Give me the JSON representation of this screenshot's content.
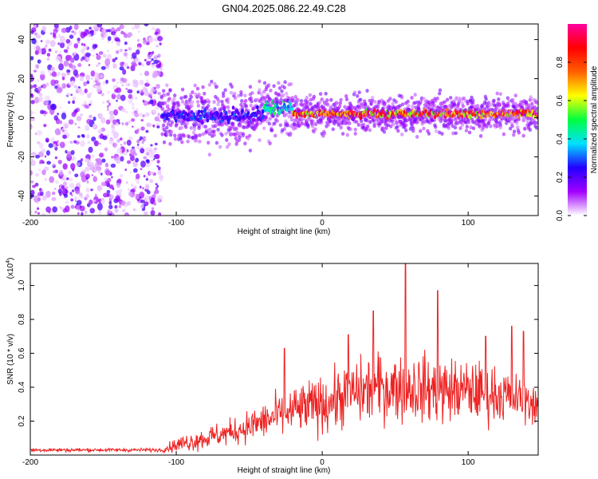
{
  "title": "GN04.2025.086.22.49.C28",
  "chart_data": [
    {
      "type": "heatmap",
      "xlabel": "Height of straight line (km)",
      "ylabel": "Frequency (Hz)",
      "xlim": [
        -200,
        148
      ],
      "ylim": [
        -50,
        48
      ],
      "x_ticks": [
        -200,
        -100,
        0,
        100
      ],
      "y_ticks": [
        -40,
        -20,
        0,
        20,
        40
      ],
      "colorbar": {
        "label": "Normalized spectral amplitude",
        "range": [
          0,
          1
        ],
        "ticks": [
          "0.0",
          "0.2",
          "0.4",
          "0.6",
          "0.8"
        ],
        "colormap": [
          "#ffffff",
          "#a100ff",
          "#2200ff",
          "#00e0ff",
          "#00ff40",
          "#ffff00",
          "#ff6000",
          "#ff0000",
          "#ff00a0"
        ]
      },
      "regions": [
        {
          "x_range": [
            -200,
            -110
          ],
          "frequency_range": [
            -50,
            48
          ],
          "pattern": "scattered noise",
          "amplitude": 0.1
        },
        {
          "x_range": [
            -110,
            -40
          ],
          "center_frequency": 1,
          "bandwidth": 8,
          "amplitude": 0.3
        },
        {
          "x_range": [
            -40,
            -20
          ],
          "center_frequency": 5,
          "bandwidth": 8,
          "amplitude": 0.5
        },
        {
          "x_range": [
            -20,
            148
          ],
          "center_frequency": 2,
          "bandwidth": 5,
          "amplitude": 0.95
        }
      ]
    },
    {
      "type": "line",
      "xlabel": "Height of straight line (km)",
      "ylabel": "SNR (10 * v/v)",
      "y_scale_label": "(x10",
      "y_scale_exponent": "4",
      "xlim": [
        -200,
        148
      ],
      "ylim": [
        0,
        1.13
      ],
      "x_ticks": [
        -200,
        -100,
        0,
        100
      ],
      "y_ticks": [
        0.2,
        0.4,
        0.6,
        0.8,
        1.0
      ],
      "y_tick_labels": [
        "0.2",
        "0.4",
        "0.6",
        "0.8",
        "1.0"
      ],
      "color": "#ee2222",
      "series": [
        {
          "baseline_x": [
            -200,
            -110,
            -100,
            -80,
            -60,
            -40,
            -20,
            0,
            20,
            40,
            60,
            80,
            100,
            120,
            148
          ],
          "baseline_y": [
            0.03,
            0.03,
            0.06,
            0.1,
            0.14,
            0.2,
            0.26,
            0.3,
            0.36,
            0.4,
            0.4,
            0.38,
            0.38,
            0.36,
            0.3
          ],
          "spread_y": [
            0.01,
            0.01,
            0.04,
            0.06,
            0.07,
            0.1,
            0.13,
            0.15,
            0.17,
            0.18,
            0.18,
            0.18,
            0.16,
            0.15,
            0.1
          ],
          "peaks": [
            {
              "x": -26,
              "y": 0.63
            },
            {
              "x": 18,
              "y": 0.71
            },
            {
              "x": 35,
              "y": 0.85
            },
            {
              "x": 57,
              "y": 1.13
            },
            {
              "x": 79,
              "y": 0.97
            },
            {
              "x": 112,
              "y": 0.7
            },
            {
              "x": 130,
              "y": 0.76
            },
            {
              "x": 138,
              "y": 0.73
            }
          ]
        }
      ]
    }
  ]
}
